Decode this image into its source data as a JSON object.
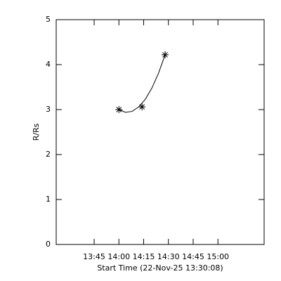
{
  "chart_data": {
    "type": "scatter",
    "x_label": "Start Time (22-Nov-25 13:30:08)",
    "y_label": "R/Rs",
    "xlim": [
      "13:22",
      "15:28"
    ],
    "xticks": [
      "13:45",
      "14:00",
      "14:15",
      "14:30",
      "14:45",
      "15:00"
    ],
    "ylim": [
      0,
      5
    ],
    "yticks": [
      0,
      1,
      2,
      3,
      4,
      5
    ],
    "grid": false,
    "series": [
      {
        "color": "#000000",
        "marker": "star",
        "x": [
          "14:00",
          "14:14",
          "14:28"
        ],
        "values": [
          3.0,
          3.06,
          4.22
        ]
      },
      {
        "color": "#000000",
        "marker": "none",
        "x": [
          "14:00",
          "14:04",
          "14:08",
          "14:12",
          "14:16",
          "14:20",
          "14:24",
          "14:28"
        ],
        "values": [
          3.0,
          2.94,
          2.96,
          3.06,
          3.23,
          3.48,
          3.81,
          4.22
        ]
      }
    ]
  }
}
